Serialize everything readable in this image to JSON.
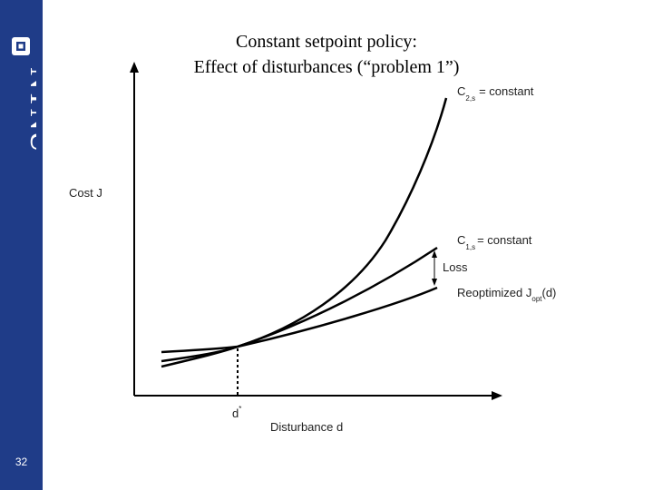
{
  "slide": {
    "title_line1": "Constant setpoint policy:",
    "title_line2": "Effect of disturbances (“problem 1”)",
    "page_number": "32",
    "colors": {
      "sidebar": "#1f3c88",
      "background": "#ffffff",
      "ink": "#000000"
    }
  },
  "branding": {
    "logo_text": "NTNU",
    "logo_icon": "ntnu-square-icon"
  },
  "diagram": {
    "y_axis_label": "Cost J",
    "x_axis_label": "Disturbance d",
    "d_star": {
      "base": "d",
      "sup": "*"
    },
    "c2": {
      "prefix": "C",
      "sub": "2,s",
      "suffix": "= constant"
    },
    "c1": {
      "prefix": "C",
      "sub": "1,s",
      "suffix": "= constant"
    },
    "loss_label": "Loss",
    "reopt": {
      "prefix": "Reoptimized J",
      "sub": "opt",
      "suffix": "(d)"
    }
  }
}
